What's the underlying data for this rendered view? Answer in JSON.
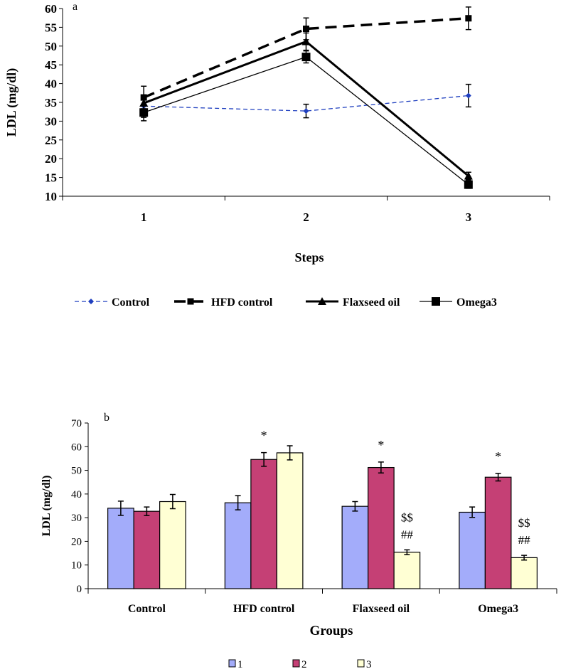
{
  "chart_data": [
    {
      "type": "line",
      "panel_label": "a",
      "xlabel": "Steps",
      "ylabel": "LDL (mg/dl)",
      "categories": [
        "1",
        "2",
        "3"
      ],
      "ylim": [
        10,
        60
      ],
      "yticks": [
        10,
        15,
        20,
        25,
        30,
        35,
        40,
        45,
        50,
        55,
        60
      ],
      "legend_position": "bottom",
      "series": [
        {
          "name": "Control",
          "values": [
            34.0,
            32.7,
            36.8
          ],
          "errors": [
            3.0,
            1.8,
            3.0
          ],
          "color": "#1f3fbf",
          "style": "dashed-thin",
          "marker": "diamond"
        },
        {
          "name": "HFD control",
          "values": [
            36.3,
            54.6,
            57.4
          ],
          "errors": [
            3.0,
            2.9,
            3.0
          ],
          "color": "#000000",
          "style": "dashed-thick",
          "marker": "square"
        },
        {
          "name": "Flaxseed oil",
          "values": [
            34.8,
            51.2,
            15.4
          ],
          "errors": [
            2.0,
            2.3,
            1.0
          ],
          "color": "#000000",
          "style": "solid-thick",
          "marker": "triangle"
        },
        {
          "name": "Omega3",
          "values": [
            32.3,
            47.1,
            13.1
          ],
          "errors": [
            2.2,
            1.6,
            1.0
          ],
          "color": "#000000",
          "style": "solid-thin",
          "marker": "square-large"
        }
      ]
    },
    {
      "type": "bar",
      "panel_label": "b",
      "xlabel": "Groups",
      "ylabel": "LDL (mg/dl)",
      "categories": [
        "Control",
        "HFD control",
        "Flaxseed oil",
        "Omega3"
      ],
      "ylim": [
        0,
        70
      ],
      "yticks": [
        0,
        10,
        20,
        30,
        40,
        50,
        60,
        70
      ],
      "legend_position": "bottom",
      "series": [
        {
          "name": "1",
          "values": [
            34.0,
            36.3,
            34.8,
            32.3
          ],
          "errors": [
            3.0,
            3.0,
            2.0,
            2.2
          ],
          "color": "#a3acfa"
        },
        {
          "name": "2",
          "values": [
            32.7,
            54.6,
            51.2,
            47.1
          ],
          "errors": [
            1.8,
            2.9,
            2.3,
            1.6
          ],
          "color": "#c54075"
        },
        {
          "name": "3",
          "values": [
            36.8,
            57.4,
            15.4,
            13.1
          ],
          "errors": [
            3.0,
            3.0,
            1.0,
            1.0
          ],
          "color": "#ffffd4"
        }
      ],
      "annotations": [
        {
          "category": "HFD control",
          "series": "2",
          "text": "*"
        },
        {
          "category": "Flaxseed oil",
          "series": "2",
          "text": "*"
        },
        {
          "category": "Omega3",
          "series": "2",
          "text": "*"
        },
        {
          "category": "Flaxseed oil",
          "series": "3",
          "text": "$$"
        },
        {
          "category": "Flaxseed oil",
          "series": "3",
          "text": "##"
        },
        {
          "category": "Omega3",
          "series": "3",
          "text": "$$"
        },
        {
          "category": "Omega3",
          "series": "3",
          "text": "##"
        }
      ]
    }
  ]
}
